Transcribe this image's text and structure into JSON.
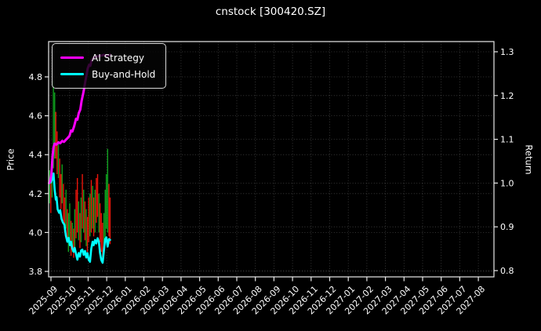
{
  "window": {
    "title": "cnstock [300420.SZ]"
  },
  "colors": {
    "background": "#000000",
    "spine": "#e8e8e8",
    "grid": "#888888",
    "tick_text": "#ffffff",
    "ai_strategy": "#ff00ff",
    "buy_and_hold": "#00ffff",
    "candle_up": "#0fa01e",
    "candle_down": "#ea150b"
  },
  "legend": {
    "position": "upper-left",
    "items": [
      {
        "label": "AI Strategy",
        "color": "#ff00ff"
      },
      {
        "label": "Buy-and-Hold",
        "color": "#00ffff"
      }
    ]
  },
  "chart_data": {
    "type": "candlestick+line",
    "title": "cnstock [300420.SZ]",
    "xlabel": "",
    "grid": true,
    "x_unit": "months since 2025-09 tick",
    "x_tick_labels": [
      "2025-09",
      "2025-10",
      "2025-11",
      "2025-12",
      "2026-01",
      "2026-02",
      "2026-03",
      "2026-04",
      "2026-05",
      "2026-06",
      "2026-07",
      "2026-08",
      "2026-09",
      "2026-10",
      "2026-11",
      "2026-12",
      "2027-01",
      "2027-02",
      "2027-03",
      "2027-04",
      "2027-05",
      "2027-06",
      "2027-07",
      "2027-08"
    ],
    "left_axis": {
      "label": "Price",
      "ticks": [
        3.8,
        4.0,
        4.2,
        4.4,
        4.6,
        4.8
      ],
      "range": [
        3.776,
        4.98
      ]
    },
    "right_axis": {
      "label": "Return",
      "ticks": [
        0.8,
        0.9,
        1.0,
        1.1,
        1.2,
        1.3
      ],
      "range": [
        0.786,
        1.324
      ]
    },
    "series": [
      {
        "name": "AI Strategy",
        "axis": "right",
        "color": "#ff00ff",
        "width": 3,
        "points": [
          [
            -0.1,
            1.0
          ],
          [
            -0.04,
            1.004
          ],
          [
            0.02,
            1.02
          ],
          [
            0.08,
            1.058
          ],
          [
            0.14,
            1.082
          ],
          [
            0.2,
            1.09
          ],
          [
            0.3,
            1.088
          ],
          [
            0.4,
            1.093
          ],
          [
            0.5,
            1.091
          ],
          [
            0.6,
            1.096
          ],
          [
            0.7,
            1.094
          ],
          [
            0.8,
            1.099
          ],
          [
            0.9,
            1.103
          ],
          [
            1.0,
            1.108
          ],
          [
            1.08,
            1.12
          ],
          [
            1.15,
            1.118
          ],
          [
            1.25,
            1.13
          ],
          [
            1.35,
            1.147
          ],
          [
            1.42,
            1.145
          ],
          [
            1.5,
            1.16
          ],
          [
            1.58,
            1.168
          ],
          [
            1.65,
            1.188
          ],
          [
            1.72,
            1.202
          ],
          [
            1.78,
            1.215
          ],
          [
            1.85,
            1.232
          ],
          [
            1.92,
            1.248
          ],
          [
            1.98,
            1.262
          ],
          [
            2.05,
            1.27
          ],
          [
            2.12,
            1.268
          ],
          [
            2.18,
            1.28
          ],
          [
            2.28,
            1.286
          ],
          [
            2.4,
            1.289
          ],
          [
            2.55,
            1.29
          ],
          [
            2.7,
            1.291
          ],
          [
            2.85,
            1.293
          ],
          [
            3.0,
            1.29
          ],
          [
            3.1,
            1.292
          ],
          [
            3.18,
            1.293
          ]
        ]
      },
      {
        "name": "Buy-and-Hold",
        "axis": "right",
        "color": "#00ffff",
        "width": 2.6,
        "points": [
          [
            -0.1,
            1.0
          ],
          [
            0.0,
            1.002
          ],
          [
            0.08,
            1.01
          ],
          [
            0.14,
            1.022
          ],
          [
            0.2,
            0.985
          ],
          [
            0.26,
            0.962
          ],
          [
            0.3,
            0.968
          ],
          [
            0.36,
            0.94
          ],
          [
            0.44,
            0.932
          ],
          [
            0.5,
            0.938
          ],
          [
            0.57,
            0.918
          ],
          [
            0.64,
            0.91
          ],
          [
            0.72,
            0.905
          ],
          [
            0.8,
            0.88
          ],
          [
            0.88,
            0.866
          ],
          [
            0.95,
            0.875
          ],
          [
            1.02,
            0.858
          ],
          [
            1.08,
            0.866
          ],
          [
            1.15,
            0.85
          ],
          [
            1.22,
            0.843
          ],
          [
            1.28,
            0.852
          ],
          [
            1.35,
            0.838
          ],
          [
            1.42,
            0.825
          ],
          [
            1.49,
            0.84
          ],
          [
            1.56,
            0.832
          ],
          [
            1.62,
            0.846
          ],
          [
            1.69,
            0.848
          ],
          [
            1.76,
            0.836
          ],
          [
            1.83,
            0.845
          ],
          [
            1.9,
            0.83
          ],
          [
            1.96,
            0.84
          ],
          [
            2.03,
            0.825
          ],
          [
            2.1,
            0.82
          ],
          [
            2.17,
            0.85
          ],
          [
            2.24,
            0.866
          ],
          [
            2.3,
            0.858
          ],
          [
            2.37,
            0.87
          ],
          [
            2.44,
            0.862
          ],
          [
            2.51,
            0.874
          ],
          [
            2.58,
            0.866
          ],
          [
            2.64,
            0.84
          ],
          [
            2.71,
            0.824
          ],
          [
            2.78,
            0.818
          ],
          [
            2.85,
            0.845
          ],
          [
            2.92,
            0.872
          ],
          [
            2.98,
            0.876
          ],
          [
            3.05,
            0.855
          ],
          [
            3.12,
            0.872
          ],
          [
            3.18,
            0.87
          ]
        ]
      }
    ],
    "candles": [
      {
        "t": -0.08,
        "lo": 4.15,
        "hi": 4.32,
        "dir": "up"
      },
      {
        "t": -0.01,
        "lo": 4.1,
        "hi": 4.28,
        "dir": "down"
      },
      {
        "t": 0.06,
        "lo": 4.18,
        "hi": 4.4,
        "dir": "up"
      },
      {
        "t": 0.13,
        "lo": 4.33,
        "hi": 4.78,
        "dir": "up"
      },
      {
        "t": 0.2,
        "lo": 4.38,
        "hi": 4.72,
        "dir": "up"
      },
      {
        "t": 0.26,
        "lo": 4.38,
        "hi": 4.62,
        "dir": "down"
      },
      {
        "t": 0.33,
        "lo": 4.3,
        "hi": 4.52,
        "dir": "down"
      },
      {
        "t": 0.4,
        "lo": 4.28,
        "hi": 4.46,
        "dir": "up"
      },
      {
        "t": 0.47,
        "lo": 4.18,
        "hi": 4.38,
        "dir": "down"
      },
      {
        "t": 0.54,
        "lo": 4.12,
        "hi": 4.3,
        "dir": "down"
      },
      {
        "t": 0.6,
        "lo": 4.15,
        "hi": 4.35,
        "dir": "up"
      },
      {
        "t": 0.67,
        "lo": 4.05,
        "hi": 4.25,
        "dir": "down"
      },
      {
        "t": 0.74,
        "lo": 4.0,
        "hi": 4.18,
        "dir": "down"
      },
      {
        "t": 0.81,
        "lo": 4.02,
        "hi": 4.22,
        "dir": "up"
      },
      {
        "t": 0.88,
        "lo": 3.95,
        "hi": 4.12,
        "dir": "down"
      },
      {
        "t": 0.94,
        "lo": 3.9,
        "hi": 4.1,
        "dir": "up"
      },
      {
        "t": 1.01,
        "lo": 3.93,
        "hi": 4.15,
        "dir": "up"
      },
      {
        "t": 1.08,
        "lo": 3.88,
        "hi": 4.06,
        "dir": "down"
      },
      {
        "t": 1.15,
        "lo": 3.9,
        "hi": 4.05,
        "dir": "up"
      },
      {
        "t": 1.22,
        "lo": 3.87,
        "hi": 4.02,
        "dir": "down"
      },
      {
        "t": 1.28,
        "lo": 3.92,
        "hi": 4.12,
        "dir": "up"
      },
      {
        "t": 1.35,
        "lo": 3.97,
        "hi": 4.22,
        "dir": "down"
      },
      {
        "t": 1.42,
        "lo": 4.0,
        "hi": 4.28,
        "dir": "down"
      },
      {
        "t": 1.49,
        "lo": 3.96,
        "hi": 4.16,
        "dir": "up"
      },
      {
        "t": 1.56,
        "lo": 3.92,
        "hi": 4.1,
        "dir": "down"
      },
      {
        "t": 1.62,
        "lo": 3.95,
        "hi": 4.18,
        "dir": "up"
      },
      {
        "t": 1.69,
        "lo": 4.02,
        "hi": 4.3,
        "dir": "down"
      },
      {
        "t": 1.76,
        "lo": 4.0,
        "hi": 4.22,
        "dir": "up"
      },
      {
        "t": 1.83,
        "lo": 3.96,
        "hi": 4.16,
        "dir": "down"
      },
      {
        "t": 1.9,
        "lo": 3.93,
        "hi": 4.12,
        "dir": "up"
      },
      {
        "t": 1.96,
        "lo": 3.9,
        "hi": 4.08,
        "dir": "down"
      },
      {
        "t": 2.03,
        "lo": 3.95,
        "hi": 4.18,
        "dir": "down"
      },
      {
        "t": 2.1,
        "lo": 3.98,
        "hi": 4.2,
        "dir": "up"
      },
      {
        "t": 2.17,
        "lo": 4.0,
        "hi": 4.27,
        "dir": "down"
      },
      {
        "t": 2.24,
        "lo": 4.02,
        "hi": 4.24,
        "dir": "up"
      },
      {
        "t": 2.3,
        "lo": 3.98,
        "hi": 4.18,
        "dir": "down"
      },
      {
        "t": 2.37,
        "lo": 4.0,
        "hi": 4.22,
        "dir": "up"
      },
      {
        "t": 2.44,
        "lo": 4.05,
        "hi": 4.28,
        "dir": "down"
      },
      {
        "t": 2.51,
        "lo": 4.08,
        "hi": 4.3,
        "dir": "down"
      },
      {
        "t": 2.58,
        "lo": 4.0,
        "hi": 4.2,
        "dir": "up"
      },
      {
        "t": 2.64,
        "lo": 3.95,
        "hi": 4.15,
        "dir": "down"
      },
      {
        "t": 2.71,
        "lo": 3.9,
        "hi": 4.1,
        "dir": "down"
      },
      {
        "t": 2.78,
        "lo": 3.87,
        "hi": 4.05,
        "dir": "down"
      },
      {
        "t": 2.85,
        "lo": 3.9,
        "hi": 4.1,
        "dir": "up"
      },
      {
        "t": 2.92,
        "lo": 3.96,
        "hi": 4.22,
        "dir": "up"
      },
      {
        "t": 2.98,
        "lo": 4.02,
        "hi": 4.3,
        "dir": "up"
      },
      {
        "t": 3.05,
        "lo": 4.0,
        "hi": 4.43,
        "dir": "up"
      },
      {
        "t": 3.12,
        "lo": 3.98,
        "hi": 4.25,
        "dir": "down"
      },
      {
        "t": 3.18,
        "lo": 3.94,
        "hi": 4.18,
        "dir": "down"
      }
    ]
  }
}
